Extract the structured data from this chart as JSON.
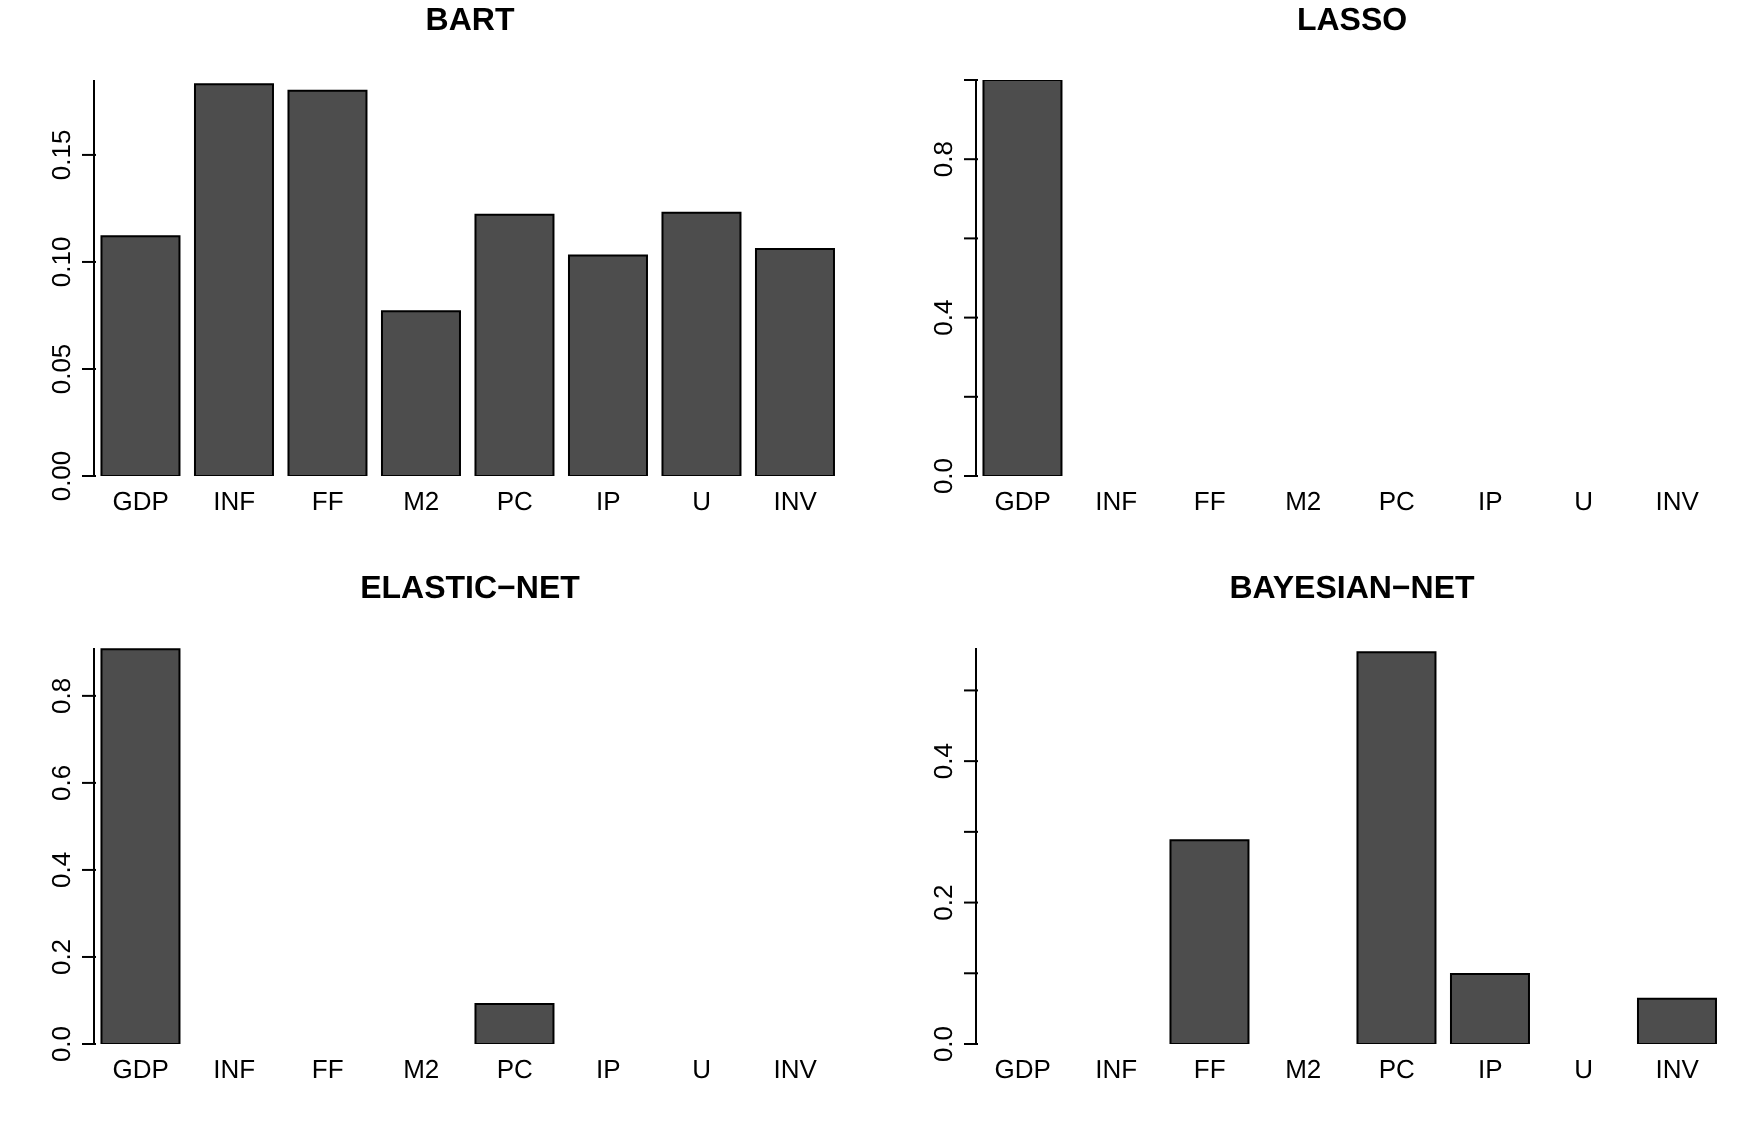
{
  "chart_data": [
    {
      "type": "bar",
      "title": "BART",
      "categories": [
        "GDP",
        "INF",
        "FF",
        "M2",
        "PC",
        "IP",
        "U",
        "INV"
      ],
      "values": [
        0.112,
        0.183,
        0.18,
        0.077,
        0.122,
        0.103,
        0.123,
        0.106
      ],
      "color": "#4d4d4d",
      "ylim": [
        0,
        0.185
      ],
      "yticks": [
        {
          "value": 0,
          "label": "0.00"
        },
        {
          "value": 0.05,
          "label": "0.05"
        },
        {
          "value": 0.1,
          "label": "0.10"
        },
        {
          "value": 0.15,
          "label": "0.15"
        }
      ],
      "grid": false,
      "legend": false
    },
    {
      "type": "bar",
      "title": "LASSO",
      "categories": [
        "GDP",
        "INF",
        "FF",
        "M2",
        "PC",
        "IP",
        "U",
        "INV"
      ],
      "values": [
        1.0,
        0,
        0,
        0,
        0,
        0,
        0,
        0
      ],
      "color": "#4d4d4d",
      "ylim": [
        0,
        1.0
      ],
      "yticks": [
        {
          "value": 0,
          "label": "0.0"
        },
        {
          "value": 0.2,
          "label": null
        },
        {
          "value": 0.4,
          "label": "0.4"
        },
        {
          "value": 0.6,
          "label": null
        },
        {
          "value": 0.8,
          "label": "0.8"
        },
        {
          "value": 1.0,
          "label": null
        }
      ],
      "grid": false,
      "legend": false
    },
    {
      "type": "bar",
      "title": "ELASTIC−NET",
      "categories": [
        "GDP",
        "INF",
        "FF",
        "M2",
        "PC",
        "IP",
        "U",
        "INV"
      ],
      "values": [
        0.907,
        0,
        0,
        0,
        0.092,
        0,
        0,
        0
      ],
      "color": "#4d4d4d",
      "ylim": [
        0,
        0.91
      ],
      "yticks": [
        {
          "value": 0,
          "label": "0.0"
        },
        {
          "value": 0.2,
          "label": "0.2"
        },
        {
          "value": 0.4,
          "label": "0.4"
        },
        {
          "value": 0.6,
          "label": "0.6"
        },
        {
          "value": 0.8,
          "label": "0.8"
        }
      ],
      "grid": false,
      "legend": false
    },
    {
      "type": "bar",
      "title": "BAYESIAN−NET",
      "categories": [
        "GDP",
        "INF",
        "FF",
        "M2",
        "PC",
        "IP",
        "U",
        "INV"
      ],
      "values": [
        0,
        0,
        0.288,
        0,
        0.554,
        0.099,
        0,
        0.064
      ],
      "color": "#4d4d4d",
      "ylim": [
        0,
        0.56
      ],
      "yticks": [
        {
          "value": 0,
          "label": "0.0"
        },
        {
          "value": 0.1,
          "label": null
        },
        {
          "value": 0.2,
          "label": "0.2"
        },
        {
          "value": 0.3,
          "label": null
        },
        {
          "value": 0.4,
          "label": "0.4"
        },
        {
          "value": 0.5,
          "label": null
        }
      ],
      "grid": false,
      "legend": false
    }
  ]
}
